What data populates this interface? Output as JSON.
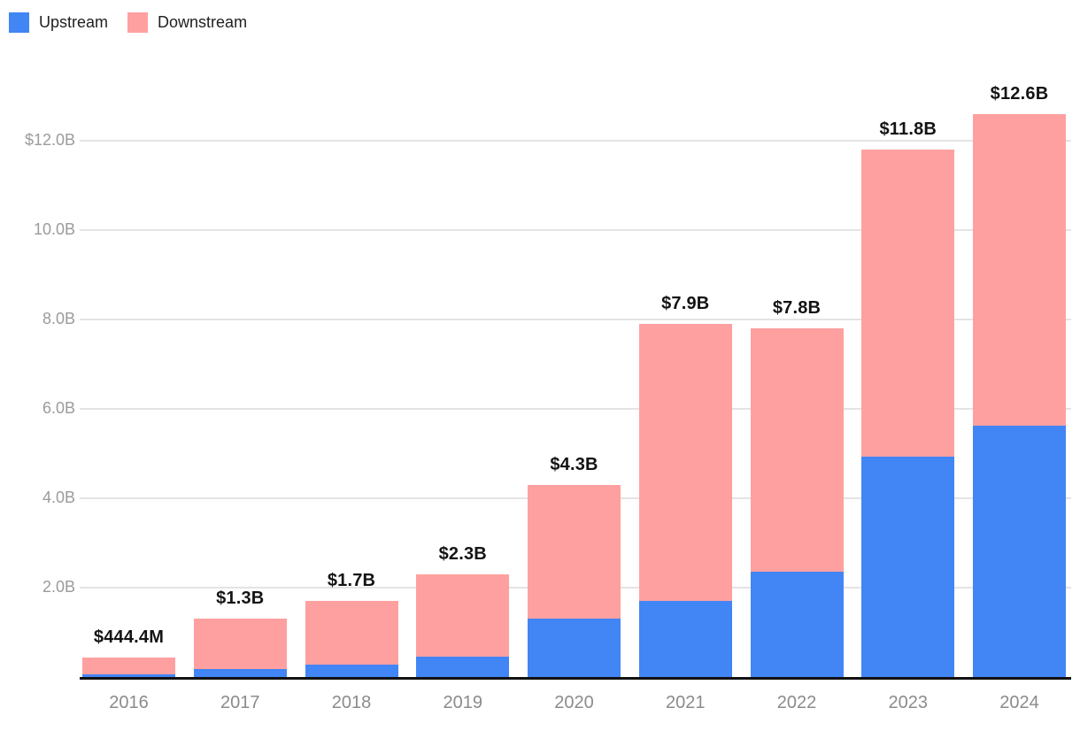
{
  "legend": {
    "items": [
      {
        "label": "Upstream",
        "color": "#4285F4"
      },
      {
        "label": "Downstream",
        "color": "#FFA0A0"
      }
    ]
  },
  "chart_data": {
    "type": "bar",
    "stacked": true,
    "title": "",
    "xlabel": "",
    "ylabel": "",
    "categories": [
      "2016",
      "2017",
      "2018",
      "2019",
      "2020",
      "2021",
      "2022",
      "2023",
      "2024"
    ],
    "series": [
      {
        "name": "Upstream",
        "color": "#4285F4",
        "values": [
          0.05,
          0.18,
          0.28,
          0.46,
          1.3,
          1.7,
          2.36,
          4.93,
          5.62
        ]
      },
      {
        "name": "Downstream",
        "color": "#FFA0A0",
        "values": [
          0.3944,
          1.12,
          1.42,
          1.84,
          3.0,
          6.2,
          5.44,
          6.87,
          6.98
        ]
      }
    ],
    "totals": [
      0.4444,
      1.3,
      1.7,
      2.3,
      4.3,
      7.9,
      7.8,
      11.8,
      12.6
    ],
    "total_labels": [
      "$444.4M",
      "$1.3B",
      "$1.7B",
      "$2.3B",
      "$4.3B",
      "$7.9B",
      "$7.8B",
      "$11.8B",
      "$12.6B"
    ],
    "y_ticks": [
      {
        "value": 12,
        "label": "$12.0B"
      },
      {
        "value": 10,
        "label": "10.0B"
      },
      {
        "value": 8,
        "label": "8.0B"
      },
      {
        "value": 6,
        "label": "6.0B"
      },
      {
        "value": 4,
        "label": "4.0B"
      },
      {
        "value": 2,
        "label": "2.0B"
      }
    ],
    "ylim": [
      0,
      12.61
    ],
    "grid": true,
    "legend_position": "top-left"
  },
  "colors": {
    "upstream": "#4285F4",
    "downstream": "#FFA0A0",
    "gridline": "#e4e4e4",
    "axis_line": "#111111",
    "y_tick_text": "#9b9b9b",
    "x_tick_text": "#8b8b8b",
    "value_label_text": "#141414"
  }
}
